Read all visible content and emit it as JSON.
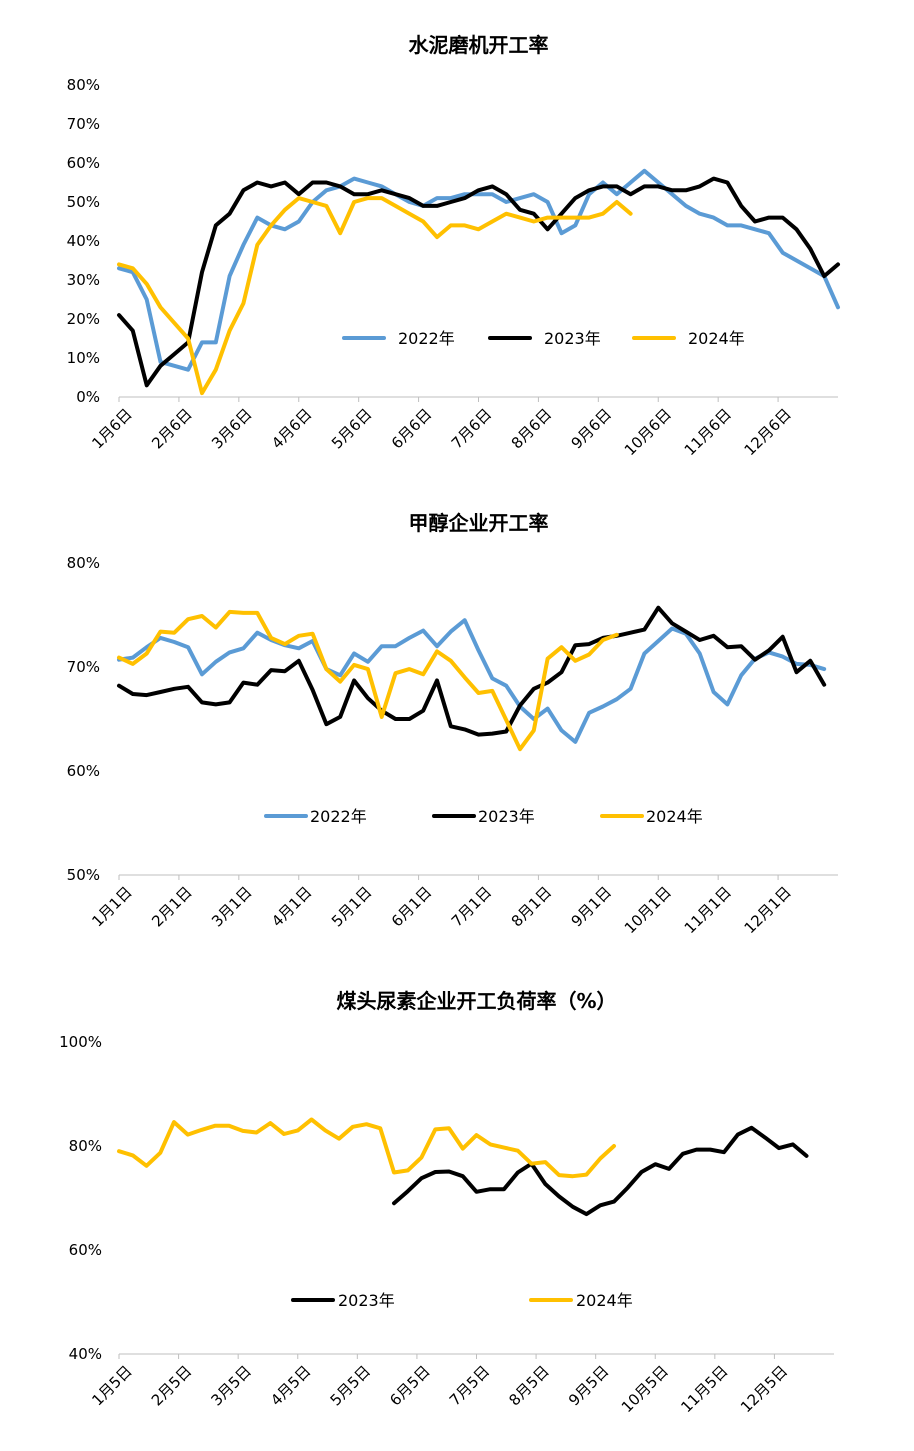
{
  "colors": {
    "2022": "#5B9BD5",
    "2023": "#000000",
    "2024": "#FFC000",
    "axis": "#bfbfbf"
  },
  "chart_data": [
    {
      "type": "line",
      "title": "水泥磨机开工率",
      "ylim": [
        0,
        80
      ],
      "yticks": [
        "0%",
        "10%",
        "20%",
        "30%",
        "40%",
        "50%",
        "60%",
        "70%",
        "80%"
      ],
      "x_ticks": [
        "1月6日",
        "2月6日",
        "3月6日",
        "4月6日",
        "5月6日",
        "6月6日",
        "7月6日",
        "8月6日",
        "9月6日",
        "10月6日",
        "11月6日",
        "12月6日"
      ],
      "week_span": 52,
      "legend_position": "bottom-center",
      "series": [
        {
          "name": "2022年",
          "color_key": "2022",
          "values": [
            33,
            32,
            25,
            9,
            8,
            7,
            14,
            14,
            31,
            39,
            46,
            44,
            43,
            45,
            50,
            53,
            54,
            56,
            55,
            54,
            52,
            50,
            49,
            51,
            51,
            52,
            52,
            52,
            50,
            51,
            52,
            50,
            42,
            44,
            52,
            55,
            52,
            55,
            58,
            55,
            52,
            49,
            47,
            46,
            44,
            44,
            43,
            42,
            37,
            35,
            33,
            31,
            23
          ]
        },
        {
          "name": "2023年",
          "color_key": "2023",
          "values": [
            21,
            17,
            3,
            8,
            11,
            14,
            32,
            44,
            47,
            53,
            55,
            54,
            55,
            52,
            55,
            55,
            54,
            52,
            52,
            53,
            52,
            51,
            49,
            49,
            50,
            51,
            53,
            54,
            52,
            48,
            47,
            43,
            47,
            51,
            53,
            54,
            54,
            52,
            54,
            54,
            53,
            53,
            54,
            56,
            55,
            49,
            45,
            46,
            46,
            43,
            38,
            31,
            34
          ]
        },
        {
          "name": "2024年",
          "color_key": "2024",
          "values": [
            34,
            33,
            29,
            23,
            19,
            15,
            1,
            7,
            17,
            24,
            39,
            44,
            48,
            51,
            50,
            49,
            42,
            50,
            51,
            51,
            49,
            47,
            45,
            41,
            44,
            44,
            43,
            45,
            47,
            46,
            45,
            46,
            46,
            46,
            46,
            47,
            50,
            47
          ]
        }
      ]
    },
    {
      "type": "line",
      "title": "甲醇企业开工率",
      "ylim": [
        50,
        80
      ],
      "yticks": [
        "50%",
        "60%",
        "70%",
        "80%"
      ],
      "x_ticks": [
        "1月1日",
        "2月1日",
        "3月1日",
        "4月1日",
        "5月1日",
        "6月1日",
        "7月1日",
        "8月1日",
        "9月1日",
        "10月1日",
        "11月1日",
        "12月1日"
      ],
      "week_span": 52,
      "legend_position": "bottom-center",
      "series": [
        {
          "name": "2022年",
          "color_key": "2022",
          "values": [
            70.7,
            70.9,
            71.9,
            72.8,
            72.4,
            71.9,
            69.3,
            70.5,
            71.4,
            71.8,
            73.3,
            72.6,
            72.1,
            71.8,
            72.5,
            69.8,
            69.2,
            71.3,
            70.5,
            72,
            72,
            72.8,
            73.5,
            72,
            73.4,
            74.5,
            71.6,
            68.9,
            68.2,
            66.2,
            65,
            66,
            63.9,
            62.8,
            65.6,
            66.2,
            66.9,
            67.9,
            71.3,
            72.5,
            73.7,
            73.2,
            71.3,
            67.6,
            66.4,
            69.2,
            70.8,
            71.4,
            71,
            70.3,
            70.2,
            69.8
          ]
        },
        {
          "name": "2023年",
          "color_key": "2023",
          "values": [
            68.2,
            67.4,
            67.3,
            67.6,
            67.9,
            68.1,
            66.6,
            66.4,
            66.6,
            68.5,
            68.3,
            69.7,
            69.6,
            70.6,
            67.8,
            64.5,
            65.2,
            68.7,
            67,
            65.8,
            65,
            65,
            65.8,
            68.7,
            64.3,
            64,
            63.5,
            63.6,
            63.8,
            66.3,
            67.9,
            68.5,
            69.5,
            72.1,
            72.2,
            72.8,
            73,
            73.3,
            73.6,
            75.7,
            74.2,
            73.4,
            72.6,
            73,
            71.9,
            72,
            70.7,
            71.6,
            72.9,
            69.5,
            70.6,
            68.3
          ]
        },
        {
          "name": "2024年",
          "color_key": "2024",
          "values": [
            70.9,
            70.3,
            71.3,
            73.4,
            73.3,
            74.6,
            74.9,
            73.8,
            75.3,
            75.2,
            75.2,
            72.8,
            72.2,
            73,
            73.2,
            69.8,
            68.6,
            70.2,
            69.8,
            65.2,
            69.4,
            69.8,
            69.3,
            71.5,
            70.6,
            69,
            67.5,
            67.7,
            64.9,
            62.1,
            63.9,
            70.8,
            71.9,
            70.6,
            71.2,
            72.6,
            73.1
          ]
        }
      ]
    },
    {
      "type": "line",
      "title": "煤头尿素企业开工负荷率（%）",
      "ylim": [
        40,
        100
      ],
      "yticks": [
        "40%",
        "60%",
        "80%",
        "100%"
      ],
      "x_ticks": [
        "1月5日",
        "2月5日",
        "3月5日",
        "4月5日",
        "5月5日",
        "6月5日",
        "7月5日",
        "8月5日",
        "9月5日",
        "10月5日",
        "11月5日",
        "12月5日"
      ],
      "week_span": 52,
      "legend_position": "bottom-center",
      "series": [
        {
          "name": "2023年",
          "color_key": "2023",
          "start_week": 20,
          "values": [
            69,
            71.3,
            73.8,
            75,
            75.1,
            74.2,
            71.2,
            71.7,
            71.7,
            74.9,
            76.6,
            72.7,
            70.3,
            68.3,
            66.9,
            68.6,
            69.3,
            72,
            75,
            76.5,
            75.6,
            78.5,
            79.3,
            79.3,
            78.8,
            82.2,
            83.5,
            81.6,
            79.6,
            80.3,
            78.1
          ]
        },
        {
          "name": "2024年",
          "color_key": "2024",
          "start_week": 0,
          "values": [
            79,
            78.2,
            76.2,
            78.7,
            84.6,
            82.2,
            83.1,
            83.9,
            83.9,
            82.9,
            82.6,
            84.4,
            82.3,
            83,
            85.1,
            83,
            81.4,
            83.7,
            84.2,
            83.4,
            74.9,
            75.3,
            77.8,
            83.2,
            83.4,
            79.5,
            82.1,
            80.3,
            79.7,
            79.1,
            76.6,
            76.9,
            74.4,
            74.2,
            74.5,
            77.6,
            80
          ]
        }
      ]
    }
  ]
}
